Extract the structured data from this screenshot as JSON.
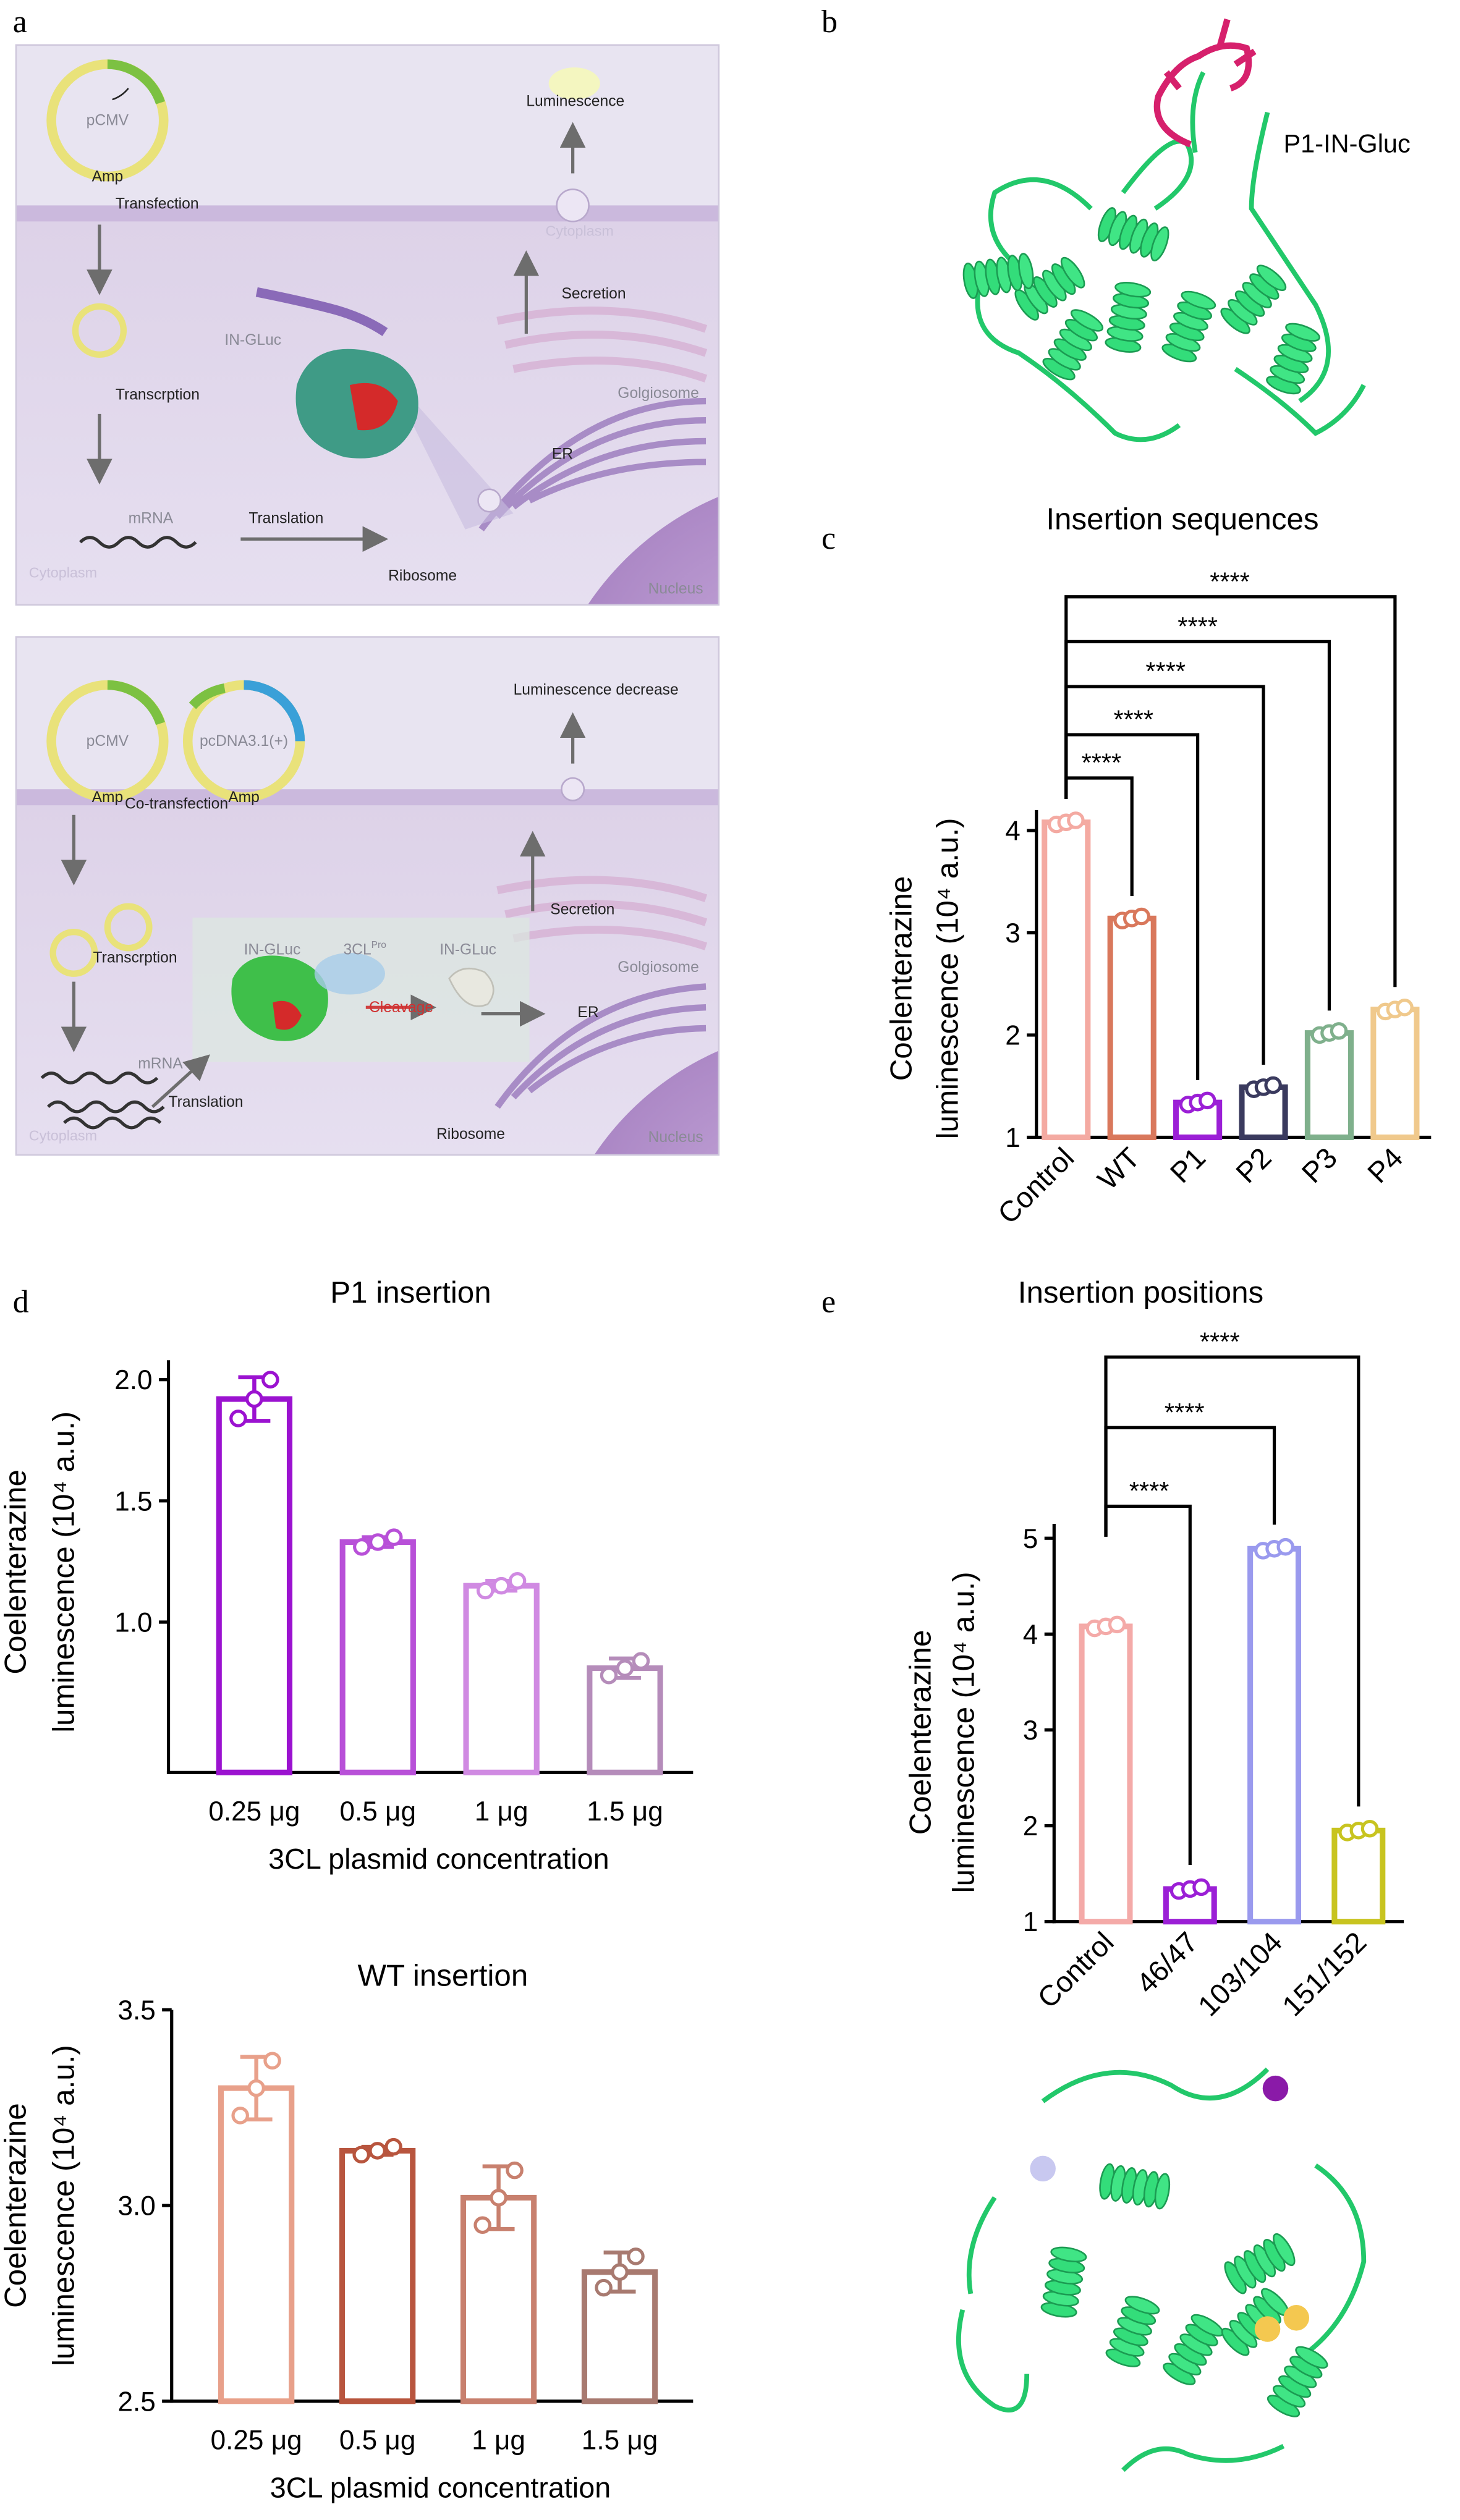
{
  "panel_labels": [
    "a",
    "b",
    "c",
    "d",
    "e"
  ],
  "plasmid_marker": "Amp",
  "diagram_top": {
    "plasmid": "pCMV",
    "transfection": "Transfection",
    "transcription": "Transcrption",
    "mrna": "mRNA",
    "translation": "Translation",
    "cytoplasm": "Cytoplasm",
    "ribosome": "Ribosome",
    "protein": "IN-GLuc",
    "secretion": "Secretion",
    "output": "Luminescence",
    "membrane": "Cytoplasm",
    "golgi": "Golgiosome",
    "er": "ER",
    "nucleus": "Nucleus"
  },
  "diagram_bottom": {
    "plasmid_1": "pCMV",
    "plasmid_2": "pcDNA3.1(+)",
    "transfection": "Co-transfection",
    "output": "Luminescence decrease",
    "transcription": "Transcrption",
    "mrna": "mRNA",
    "translation": "Translation",
    "cytoplasm": "Cytoplasm",
    "protein_1": "IN-GLuc",
    "protease": "3CL",
    "protease_sup": "Pro",
    "protein_2": "IN-GLuc",
    "cleavage": "Cleavage",
    "secretion": "Secretion",
    "golgi": "Golgiosome",
    "er": "ER",
    "ribosome": "Ribosome",
    "nucleus": "Nucleus"
  },
  "structure_b": {
    "label": "P1-IN-Gluc"
  },
  "chart_data": [
    {
      "type": "bar",
      "title": "Insertion sequences",
      "categories": [
        "Control",
        "WT",
        "P1",
        "P2",
        "P3",
        "P4"
      ],
      "values": [
        4.08,
        3.14,
        1.34,
        1.49,
        2.02,
        2.25
      ],
      "points": [
        [
          4.06,
          4.08,
          4.1
        ],
        [
          3.12,
          3.14,
          3.16
        ],
        [
          1.32,
          1.34,
          1.36
        ],
        [
          1.47,
          1.49,
          1.51
        ],
        [
          2.0,
          2.02,
          2.04
        ],
        [
          2.23,
          2.25,
          2.27
        ]
      ],
      "colors": [
        "#f4aaa2",
        "#d9785c",
        "#9b1fd6",
        "#3a3a5e",
        "#7fb08c",
        "#f0c98c"
      ],
      "ylim": [
        1,
        4.2
      ],
      "yticks": [
        1,
        2,
        3,
        4
      ],
      "ylabel": [
        "Coelenterazine",
        "luminescence (10⁴ a.u.)"
      ],
      "significance": [
        "****",
        "****",
        "****",
        "****",
        "****"
      ]
    },
    {
      "type": "bar",
      "title": "P1 insertion",
      "categories": [
        "0.25 μg",
        "0.5 μg",
        "1 μg",
        "1.5 μg"
      ],
      "values": [
        1.92,
        1.33,
        1.15,
        0.81
      ],
      "errors": [
        0.09,
        0.02,
        0.02,
        0.04
      ],
      "points": [
        [
          1.84,
          1.92,
          2.0
        ],
        [
          1.31,
          1.33,
          1.35
        ],
        [
          1.13,
          1.15,
          1.17
        ],
        [
          0.78,
          0.81,
          0.84
        ]
      ],
      "colors": [
        "#9b12d0",
        "#b850d8",
        "#d08ae2",
        "#b58cba"
      ],
      "ylim": [
        0.38,
        2.08
      ],
      "yticks": [
        {
          "value": 1,
          "label": "1.0"
        },
        1.5,
        {
          "value": 2,
          "label": "2.0"
        }
      ],
      "ylabel": [
        "Coelenterazine",
        "luminescence (10⁴ a.u.)"
      ],
      "xlabel": "3CL plasmid concentration"
    },
    {
      "type": "bar",
      "title": "WT insertion",
      "categories": [
        "0.25 μg",
        "0.5 μg",
        "1 μg",
        "1.5 μg"
      ],
      "values": [
        3.3,
        3.14,
        3.02,
        2.83
      ],
      "errors": [
        0.08,
        0.01,
        0.08,
        0.05
      ],
      "points": [
        [
          3.23,
          3.3,
          3.37
        ],
        [
          3.13,
          3.14,
          3.15
        ],
        [
          2.95,
          3.02,
          3.09
        ],
        [
          2.79,
          2.83,
          2.87
        ]
      ],
      "colors": [
        "#e8a08a",
        "#b8553e",
        "#c8806e",
        "#a87a70"
      ],
      "ylim": [
        2.5,
        3.5
      ],
      "yticks": [
        2.5,
        {
          "value": 3,
          "label": "3.0"
        },
        3.5
      ],
      "ylabel": [
        "Coelenterazine",
        "luminescence (10⁴ a.u.)"
      ],
      "xlabel": "3CL plasmid concentration"
    },
    {
      "type": "bar",
      "title": "Insertion positions",
      "categories": [
        "Control",
        "46/47",
        "103/104",
        "151/152"
      ],
      "values": [
        4.08,
        1.34,
        4.89,
        1.95
      ],
      "points": [
        [
          4.06,
          4.08,
          4.1
        ],
        [
          1.32,
          1.34,
          1.36
        ],
        [
          4.87,
          4.89,
          4.91
        ],
        [
          1.93,
          1.95,
          1.97
        ]
      ],
      "colors": [
        "#f4aaa8",
        "#9b1fd6",
        "#9a9aee",
        "#c8c420"
      ],
      "ylim": [
        1,
        5.15
      ],
      "yticks": [
        1,
        2,
        3,
        4,
        5
      ],
      "ylabel": [
        "Coelenterazine",
        "luminescence (10⁴ a.u.)"
      ],
      "significance": [
        "****",
        "****",
        "****"
      ]
    }
  ]
}
